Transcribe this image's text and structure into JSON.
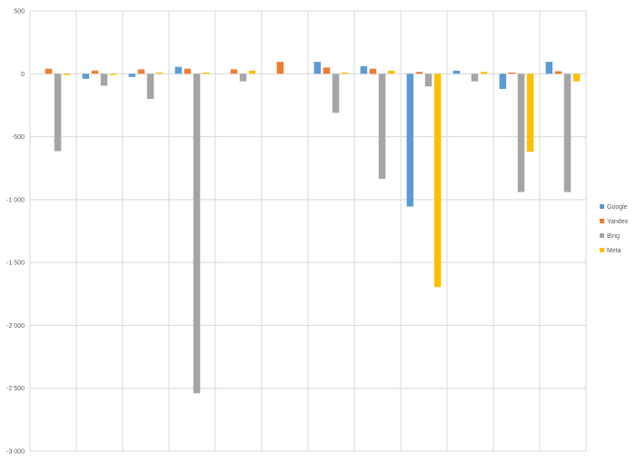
{
  "chart_data": {
    "type": "bar",
    "categories": [
      "",
      "",
      "",
      "",
      "",
      "",
      "",
      "",
      "",
      "",
      "",
      ""
    ],
    "series": [
      {
        "name": "Google",
        "color": "#5B9BD5",
        "values": [
          0,
          -40,
          -25,
          55,
          0,
          0,
          95,
          60,
          -1055,
          25,
          -120,
          95
        ]
      },
      {
        "name": "Yandex",
        "color": "#ED7D31",
        "values": [
          40,
          25,
          35,
          40,
          35,
          95,
          50,
          40,
          15,
          0,
          10,
          20
        ]
      },
      {
        "name": "Bing",
        "color": "#A5A5A5",
        "values": [
          -615,
          -95,
          -200,
          -2540,
          -60,
          0,
          -310,
          -835,
          -100,
          -60,
          -940,
          -940
        ]
      },
      {
        "name": "Meta",
        "color": "#FFC000",
        "values": [
          -10,
          -10,
          10,
          10,
          25,
          0,
          10,
          25,
          -1695,
          15,
          -620,
          -60
        ]
      }
    ],
    "ylim": [
      -3000,
      500
    ],
    "yticks": [
      {
        "value": 500,
        "label": "500"
      },
      {
        "value": 0,
        "label": "0"
      },
      {
        "value": -500,
        "label": "-500"
      },
      {
        "value": -1000,
        "label": "-1 000"
      },
      {
        "value": -1500,
        "label": "-1 500"
      },
      {
        "value": -2000,
        "label": "-2 000"
      },
      {
        "value": -2500,
        "label": "-2 500"
      },
      {
        "value": -3000,
        "label": "-3 000"
      }
    ],
    "grid": true,
    "legend": "right"
  }
}
